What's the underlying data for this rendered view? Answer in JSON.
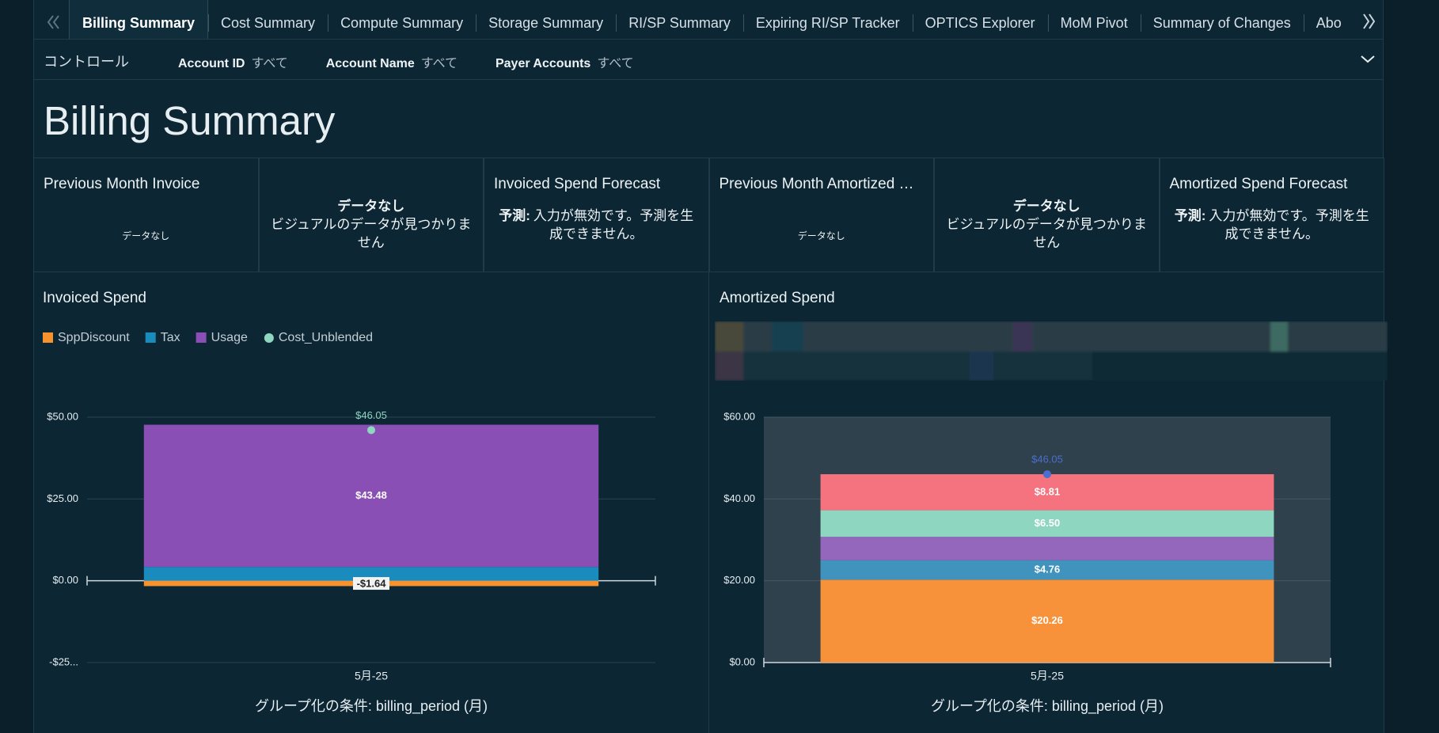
{
  "tabs": [
    "Billing Summary",
    "Cost Summary",
    "Compute Summary",
    "Storage Summary",
    "RI/SP Summary",
    "Expiring RI/SP Tracker",
    "OPTICS Explorer",
    "MoM Pivot",
    "Summary of Changes",
    "Abo"
  ],
  "controls": {
    "label": "コントロール",
    "filters": [
      {
        "name": "Account ID",
        "value": "すべて"
      },
      {
        "name": "Account Name",
        "value": "すべて"
      },
      {
        "name": "Payer Accounts",
        "value": "すべて"
      }
    ]
  },
  "header": {
    "title": "Billing Summary"
  },
  "kpis": [
    {
      "title": "Previous Month Invoice",
      "message": "データなし"
    },
    {
      "heading": "データなし",
      "message": "ビジュアルのデータが見つかりません"
    },
    {
      "title": "Invoiced Spend Forecast",
      "label": "予測:",
      "message": "入力が無効です。予測を生成できません。"
    },
    {
      "title": "Previous Month Amortized …",
      "message": "データなし"
    },
    {
      "heading": "データなし",
      "message": "ビジュアルのデータが見つかりません"
    },
    {
      "title": "Amortized Spend Forecast",
      "label": "予測:",
      "message": "入力が無効です。予測を生成できません。"
    }
  ],
  "chart_data": [
    {
      "type": "bar",
      "stacked": true,
      "title": "Invoiced Spend",
      "categories": [
        "5月-25"
      ],
      "x_label": "グループ化の条件: billing_period (月)",
      "series": [
        {
          "name": "SppDiscount",
          "color": "#f7922e",
          "values": [
            -1.64
          ],
          "value_labels": [
            "-$1.64"
          ]
        },
        {
          "name": "Tax",
          "color": "#1a8bbd",
          "values": [
            4.21
          ]
        },
        {
          "name": "Usage",
          "color": "#8a4fb5",
          "values": [
            43.48
          ],
          "value_labels": [
            "$43.48"
          ]
        },
        {
          "name": "Cost_Unblended",
          "type": "line",
          "color": "#8fd6c0",
          "values": [
            46.05
          ],
          "value_labels": [
            "$46.05"
          ]
        }
      ],
      "ylim": [
        -25,
        50
      ],
      "yticks": [
        {
          "value": -25,
          "label": "-$25..."
        },
        {
          "value": 0,
          "label": "$0.00"
        },
        {
          "value": 25,
          "label": "$25.00"
        },
        {
          "value": 50,
          "label": "$50.00"
        }
      ],
      "grid": true,
      "legend": "top-left"
    },
    {
      "type": "bar",
      "stacked": true,
      "title": "Amortized Spend",
      "categories": [
        "5月-25"
      ],
      "x_label": "グループ化の条件: billing_period (月)",
      "series": [
        {
          "color": "#f7923a",
          "values": [
            20.26
          ],
          "value_labels": [
            "$20.26"
          ]
        },
        {
          "color": "#3f93bd",
          "values": [
            4.76
          ],
          "value_labels": [
            "$4.76"
          ]
        },
        {
          "color": "#9467bd",
          "values": [
            5.72
          ]
        },
        {
          "color": "#8fd6c0",
          "values": [
            6.5
          ],
          "value_labels": [
            "$6.50"
          ]
        },
        {
          "color": "#f4737f",
          "values": [
            8.81
          ],
          "value_labels": [
            "$8.81"
          ]
        },
        {
          "type": "line",
          "color": "#4a6fcf",
          "values": [
            46.05
          ],
          "value_labels": [
            "$46.05"
          ]
        }
      ],
      "ylim": [
        0,
        60
      ],
      "yticks": [
        {
          "value": 0,
          "label": "$0.00"
        },
        {
          "value": 20,
          "label": "$20.00"
        },
        {
          "value": 40,
          "label": "$40.00"
        },
        {
          "value": 60,
          "label": "$60.00"
        }
      ],
      "grid": true,
      "plot_background": "#2f414c"
    }
  ]
}
